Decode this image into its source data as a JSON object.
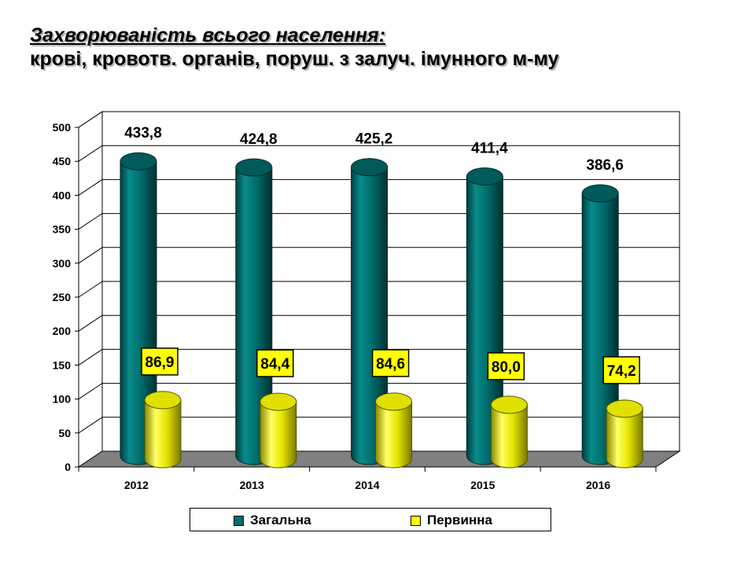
{
  "title": {
    "line1": "Захворюваність всього населення:",
    "line2": "крові, кровотв. органів, поруш. з залуч. імунного м-му"
  },
  "chart_data": {
    "type": "bar",
    "style": "3d-cylinder",
    "categories": [
      "2012",
      "2013",
      "2014",
      "2015",
      "2016"
    ],
    "series": [
      {
        "name": "Загальна",
        "color": "#006f6f",
        "values": [
          433.8,
          424.8,
          425.2,
          411.4,
          386.6
        ],
        "labels": [
          "433,8",
          "424,8",
          "425,2",
          "411,4",
          "386,6"
        ],
        "label_box": false
      },
      {
        "name": "Первинна",
        "color": "#ffff00",
        "values": [
          86.9,
          84.4,
          84.6,
          80.0,
          74.2
        ],
        "labels": [
          "86,9",
          "84,4",
          "84,6",
          "80,0",
          "74,2"
        ],
        "label_box": true
      }
    ],
    "ylim": [
      0,
      500
    ],
    "yticks": [
      "0",
      "50",
      "100",
      "150",
      "200",
      "250",
      "300",
      "350",
      "400",
      "450",
      "500"
    ],
    "grid": true,
    "legend": "bottom"
  }
}
